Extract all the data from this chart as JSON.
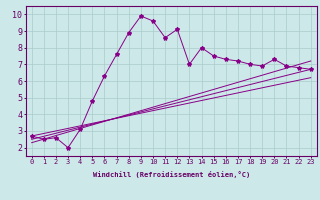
{
  "xlabel": "Windchill (Refroidissement éolien,°C)",
  "background_color": "#cde8e8",
  "line_color": "#880088",
  "xlim": [
    -0.5,
    23.5
  ],
  "ylim": [
    1.5,
    10.5
  ],
  "xticks": [
    0,
    1,
    2,
    3,
    4,
    5,
    6,
    7,
    8,
    9,
    10,
    11,
    12,
    13,
    14,
    15,
    16,
    17,
    18,
    19,
    20,
    21,
    22,
    23
  ],
  "yticks": [
    2,
    3,
    4,
    5,
    6,
    7,
    8,
    9,
    10
  ],
  "grid_color": "#aacccc",
  "series1_x": [
    0,
    1,
    2,
    3,
    4,
    5,
    6,
    7,
    8,
    9,
    10,
    11,
    12,
    13,
    14,
    15,
    16,
    17,
    18,
    19,
    20,
    21,
    22,
    23
  ],
  "series1_y": [
    2.7,
    2.5,
    2.6,
    2.0,
    3.1,
    4.8,
    6.3,
    7.6,
    8.9,
    9.9,
    9.6,
    8.6,
    9.1,
    7.0,
    8.0,
    7.5,
    7.3,
    7.2,
    7.0,
    6.9,
    7.3,
    6.9,
    6.8,
    6.7
  ],
  "series2_x": [
    0,
    23
  ],
  "series2_y": [
    2.7,
    6.2
  ],
  "series3_x": [
    0,
    23
  ],
  "series3_y": [
    2.5,
    6.7
  ],
  "series4_x": [
    0,
    23
  ],
  "series4_y": [
    2.3,
    7.2
  ],
  "tick_color": "#660066",
  "tick_fontsize": 5,
  "xlabel_fontsize": 5,
  "marker_size": 3
}
